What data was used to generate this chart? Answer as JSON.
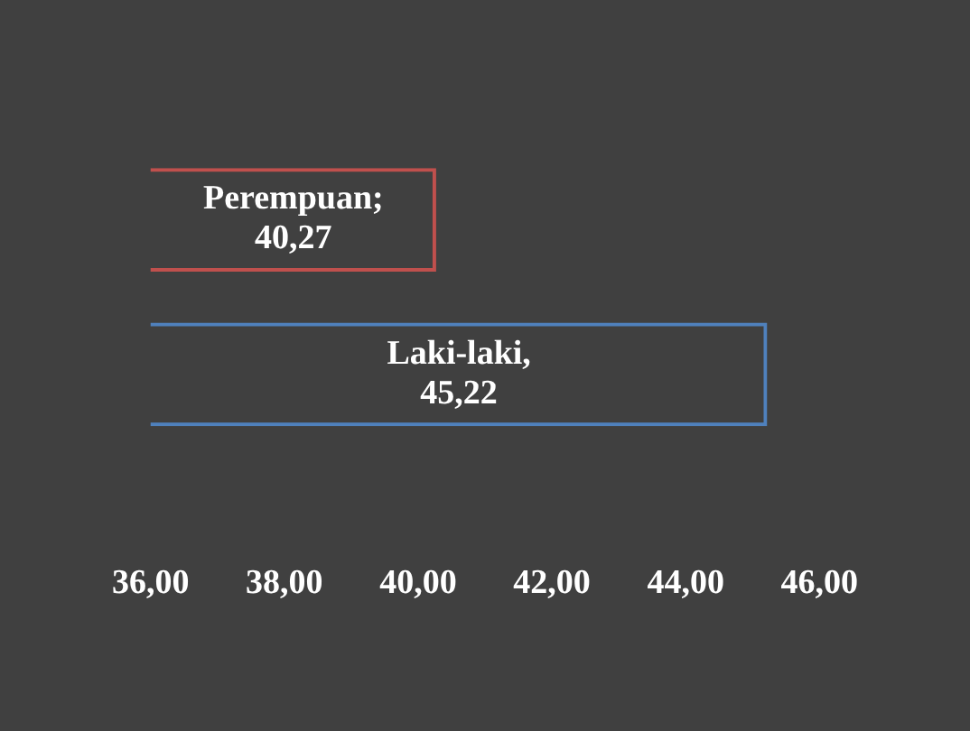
{
  "chart_data": {
    "type": "bar",
    "orientation": "horizontal",
    "categories": [
      null,
      null
    ],
    "values": [
      40.27,
      45.22
    ],
    "colors": [
      "#c0504d",
      "#4f81bd"
    ],
    "value_labels": [
      "Perempuan; 40,27",
      "Laki-laki, 45,22"
    ],
    "xlim": [
      36,
      46
    ],
    "xticks": [
      {
        "value": 36,
        "label": "36,00"
      },
      {
        "value": 38,
        "label": "38,00"
      },
      {
        "value": 40,
        "label": "40,00"
      },
      {
        "value": 42,
        "label": "42,00"
      },
      {
        "value": 44,
        "label": "44,00"
      },
      {
        "value": 46,
        "label": "46,00"
      }
    ],
    "tick_labels": "x",
    "grid": false,
    "legend": false
  }
}
